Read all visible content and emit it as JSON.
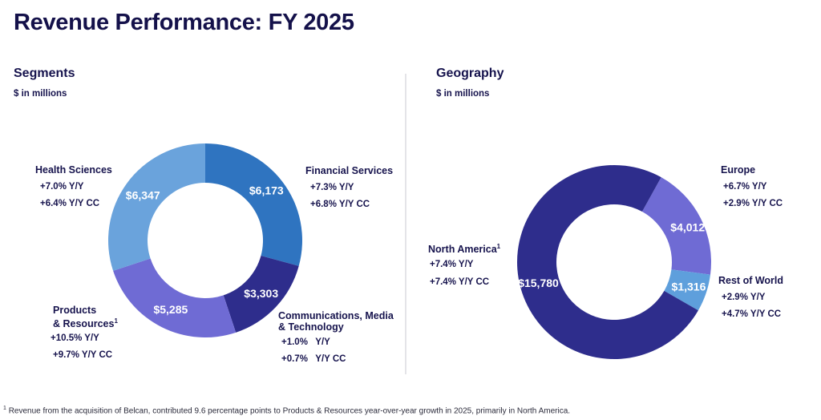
{
  "title": "Revenue Performance: FY 2025",
  "segments": {
    "title": "Segments",
    "subtitle": "$ in millions",
    "labels": [
      {
        "name": "Health Sciences",
        "sup": "",
        "yy": "+7.0%  Y/Y",
        "yycc": "+6.4%  Y/Y CC"
      },
      {
        "name": "Financial Services",
        "sup": "",
        "yy": "+7.3%  Y/Y",
        "yycc": "+6.8%  Y/Y CC"
      },
      {
        "name": "Products",
        "name2": "& Resources",
        "sup": "1",
        "yy": "+10.5%  Y/Y",
        "yycc": "+9.7%  Y/Y CC"
      },
      {
        "name": "Communications, Media",
        "name2": "& Technology",
        "sup": "",
        "yy": "+1.0%   Y/Y",
        "yycc": "+0.7%   Y/Y CC"
      }
    ]
  },
  "geography": {
    "title": "Geography",
    "subtitle": "$ in millions",
    "labels": [
      {
        "name": "Europe",
        "sup": "",
        "yy": "+6.7%  Y/Y",
        "yycc": "+2.9%  Y/Y CC"
      },
      {
        "name": "North America",
        "sup": "1",
        "yy": "+7.4% Y/Y",
        "yycc": "+7.4% Y/Y CC"
      },
      {
        "name": "Rest of World",
        "sup": "",
        "yy": "+2.9%  Y/Y",
        "yycc": "+4.7%  Y/Y CC"
      }
    ]
  },
  "footnote": {
    "sup": "1",
    "text": "Revenue from the acquisition of Belcan, contributed 9.6 percentage points to Products & Resources year-over-year growth in 2025, primarily in North America."
  },
  "chart_data": [
    {
      "type": "pie",
      "variant": "donut",
      "title": "Segments",
      "subtitle": "$ in millions",
      "start": "top",
      "direction": "clockwise",
      "categories": [
        "Financial Services",
        "Communications, Media & Technology",
        "Products & Resources",
        "Health Sciences"
      ],
      "values": [
        6173,
        3303,
        5285,
        6347
      ],
      "value_labels": [
        "$6,173",
        "$3,303",
        "$5,285",
        "$6,347"
      ],
      "colors": [
        "#2F74C0",
        "#2E2D8C",
        "#6F6BD4",
        "#6AA3DC"
      ]
    },
    {
      "type": "pie",
      "variant": "donut",
      "title": "Geography",
      "subtitle": "$ in millions",
      "direction": "clockwise",
      "categories": [
        "Europe",
        "Rest of World",
        "North America"
      ],
      "values": [
        4012,
        1316,
        15780
      ],
      "value_labels": [
        "$4,012",
        "$1,316",
        "$15,780"
      ],
      "colors": [
        "#6F6BD4",
        "#5E9FDC",
        "#2E2D8C"
      ]
    }
  ]
}
